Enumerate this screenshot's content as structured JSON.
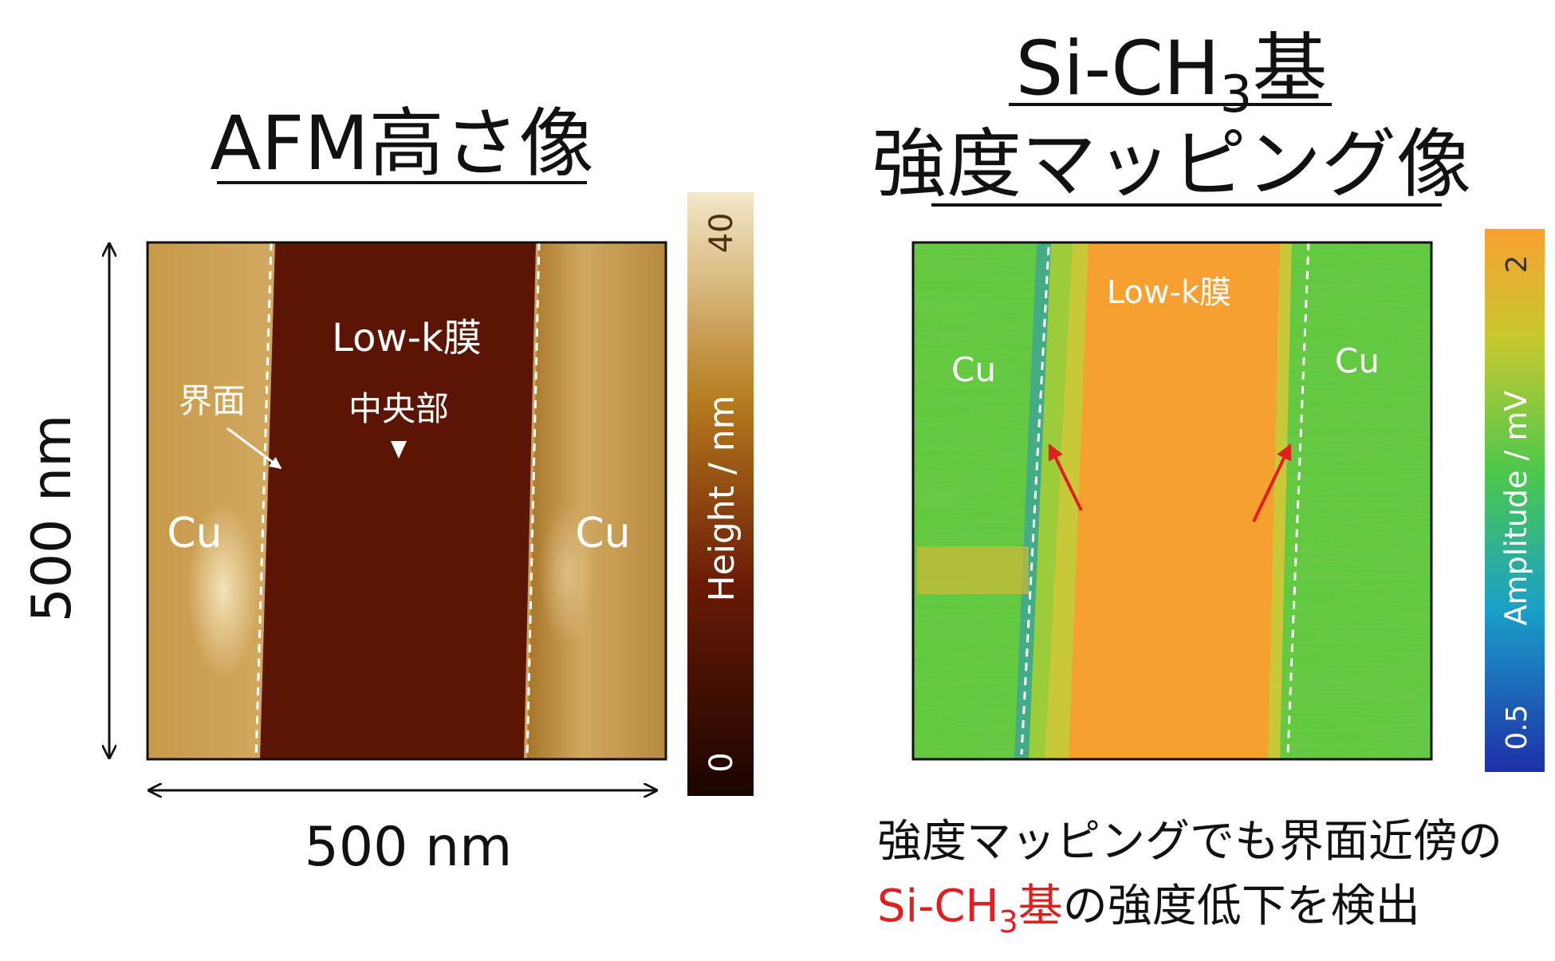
{
  "left": {
    "title": "AFM高さ像",
    "label_lowk": "Low-k膜",
    "label_center": "中央部",
    "label_interface": "界面",
    "label_cu_left": "Cu",
    "label_cu_right": "Cu",
    "scale_vertical": "500 nm",
    "scale_horizontal": "500 nm",
    "colorbar": {
      "max": "40",
      "min": "0",
      "label": "Height / nm"
    }
  },
  "right": {
    "title_line1": {
      "main": "Si-CH",
      "sub": "3",
      "tail": "基"
    },
    "title_line2": "強度マッピング像",
    "label_lowk": "Low-k膜",
    "label_cu_left": "Cu",
    "label_cu_right": "Cu",
    "colorbar": {
      "max": "2",
      "min": "0.5",
      "label": "Amplitude / mV"
    }
  },
  "caption": {
    "line1": "強度マッピングでも界面近傍の",
    "line2": {
      "red_main": "Si-CH",
      "red_sub": "3",
      "red_tail": "基",
      "rest": "の強度低下を検出"
    }
  }
}
